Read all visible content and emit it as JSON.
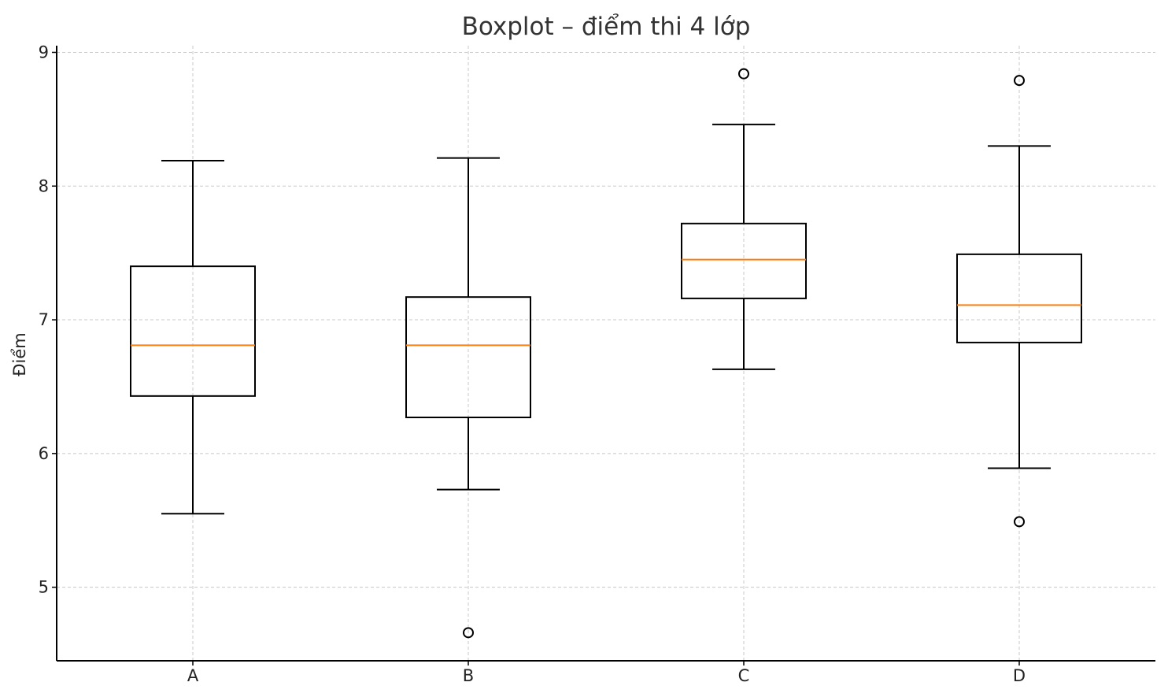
{
  "chart_data": {
    "type": "boxplot",
    "title": "Boxplot – điểm thi 4 lớp",
    "xlabel": "",
    "ylabel": "Điểm",
    "categories": [
      "A",
      "B",
      "C",
      "D"
    ],
    "ylim": [
      4.45,
      9.05
    ],
    "yticks": [
      5,
      6,
      7,
      8,
      9
    ],
    "grid": true,
    "colors": {
      "box": "#000000",
      "median": "#ff7f0e",
      "grid": "#c8c8c8",
      "axis": "#000000"
    },
    "boxes": [
      {
        "category": "A",
        "whisker_low": 5.55,
        "q1": 6.43,
        "median": 6.81,
        "q3": 7.4,
        "whisker_high": 8.19,
        "outliers": []
      },
      {
        "category": "B",
        "whisker_low": 5.73,
        "q1": 6.27,
        "median": 6.81,
        "q3": 7.17,
        "whisker_high": 8.21,
        "outliers": [
          4.66
        ]
      },
      {
        "category": "C",
        "whisker_low": 6.63,
        "q1": 7.16,
        "median": 7.45,
        "q3": 7.72,
        "whisker_high": 8.46,
        "outliers": [
          8.84
        ]
      },
      {
        "category": "D",
        "whisker_low": 5.89,
        "q1": 6.83,
        "median": 7.11,
        "q3": 7.49,
        "whisker_high": 8.3,
        "outliers": [
          5.49,
          8.79
        ]
      }
    ]
  }
}
